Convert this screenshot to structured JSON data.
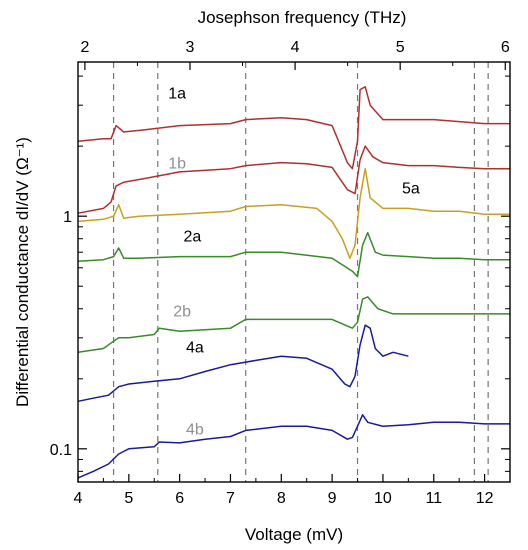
{
  "chart_data": {
    "type": "line",
    "xlabel": "Voltage (mV)",
    "x2label": "Josephson frequency (THz)",
    "ylabel": "Differential conductance dI/dV (Ω⁻¹)",
    "yscale": "log",
    "xlim": [
      4.0,
      12.5
    ],
    "ylim": [
      0.072,
      4.6
    ],
    "x_ticks": [
      "4",
      "5",
      "6",
      "7",
      "8",
      "9",
      "10",
      "11",
      "12"
    ],
    "x2_ticks": [
      "2",
      "3",
      "4",
      "5",
      "6"
    ],
    "y_ticks": [
      "0.1",
      "1"
    ],
    "grid": false,
    "dashed_lines_x": [
      4.7,
      5.57,
      7.3,
      9.5,
      11.8,
      12.07
    ],
    "series": [
      {
        "name": "1a",
        "color": "#b03030",
        "x": [
          4.0,
          4.5,
          4.65,
          4.75,
          4.9,
          5.3,
          6.0,
          7.0,
          7.3,
          8.0,
          8.5,
          9.0,
          9.3,
          9.4,
          9.5,
          9.55,
          9.65,
          9.75,
          10.0,
          10.5,
          11.0,
          11.5,
          12.0,
          12.5
        ],
        "y": [
          2.1,
          2.15,
          2.15,
          2.45,
          2.3,
          2.35,
          2.45,
          2.5,
          2.6,
          2.65,
          2.6,
          2.45,
          1.7,
          1.6,
          2.1,
          3.5,
          3.6,
          3.0,
          2.6,
          2.6,
          2.6,
          2.55,
          2.5,
          2.5
        ]
      },
      {
        "name": "1b",
        "color": "#b03030",
        "x": [
          4.0,
          4.5,
          4.65,
          4.75,
          4.9,
          5.3,
          6.0,
          7.0,
          7.3,
          8.0,
          8.5,
          9.0,
          9.3,
          9.45,
          9.55,
          9.65,
          9.8,
          10.0,
          10.5,
          11.0,
          11.5,
          12.0,
          12.5
        ],
        "y": [
          1.03,
          1.08,
          1.15,
          1.35,
          1.4,
          1.45,
          1.55,
          1.6,
          1.65,
          1.7,
          1.68,
          1.62,
          1.3,
          1.25,
          1.75,
          2.0,
          1.8,
          1.7,
          1.65,
          1.65,
          1.62,
          1.6,
          1.6
        ]
      },
      {
        "name": "5a",
        "color": "#c8a020",
        "x": [
          4.0,
          4.5,
          4.7,
          4.8,
          4.9,
          5.2,
          6.0,
          7.0,
          7.3,
          8.0,
          8.7,
          9.0,
          9.2,
          9.35,
          9.45,
          9.55,
          9.65,
          9.75,
          10.0,
          10.5,
          11.0,
          11.5,
          12.0,
          12.5
        ],
        "y": [
          0.95,
          0.97,
          1.0,
          1.12,
          0.98,
          1.0,
          1.02,
          1.05,
          1.1,
          1.12,
          1.08,
          0.95,
          0.8,
          0.66,
          0.75,
          1.2,
          1.6,
          1.2,
          1.08,
          1.08,
          1.05,
          1.05,
          1.02,
          1.02
        ]
      },
      {
        "name": "2a",
        "color": "#3a8a2a",
        "x": [
          4.0,
          4.5,
          4.7,
          4.8,
          4.9,
          5.2,
          6.0,
          7.0,
          7.3,
          8.0,
          9.0,
          9.4,
          9.5,
          9.6,
          9.7,
          9.85,
          10.0,
          10.5,
          11.0,
          11.5,
          12.0,
          12.5
        ],
        "y": [
          0.64,
          0.65,
          0.67,
          0.73,
          0.66,
          0.66,
          0.67,
          0.67,
          0.7,
          0.7,
          0.66,
          0.58,
          0.55,
          0.75,
          0.85,
          0.7,
          0.68,
          0.67,
          0.66,
          0.66,
          0.65,
          0.65
        ]
      },
      {
        "name": "2b",
        "color": "#3a8a2a",
        "x": [
          4.0,
          4.5,
          4.7,
          4.8,
          5.0,
          5.5,
          5.6,
          6.0,
          7.0,
          7.3,
          8.0,
          9.0,
          9.4,
          9.5,
          9.6,
          9.7,
          9.9,
          10.2,
          10.5,
          11.0,
          11.5,
          12.0,
          12.5
        ],
        "y": [
          0.26,
          0.27,
          0.29,
          0.3,
          0.3,
          0.31,
          0.33,
          0.32,
          0.33,
          0.36,
          0.36,
          0.36,
          0.33,
          0.35,
          0.44,
          0.45,
          0.4,
          0.38,
          0.38,
          0.38,
          0.38,
          0.38,
          0.38
        ]
      },
      {
        "name": "4a",
        "color": "#1a1aa0",
        "x": [
          4.0,
          4.3,
          4.6,
          4.8,
          5.0,
          5.5,
          6.0,
          6.5,
          7.0,
          7.5,
          8.0,
          8.5,
          9.0,
          9.25,
          9.35,
          9.45,
          9.55,
          9.65,
          9.75,
          9.85,
          10.0,
          10.2,
          10.5
        ],
        "y": [
          0.16,
          0.165,
          0.17,
          0.185,
          0.19,
          0.195,
          0.2,
          0.215,
          0.23,
          0.24,
          0.25,
          0.245,
          0.22,
          0.19,
          0.185,
          0.205,
          0.28,
          0.34,
          0.33,
          0.27,
          0.25,
          0.26,
          0.25
        ]
      },
      {
        "name": "4b",
        "color": "#1a1aa0",
        "x": [
          4.0,
          4.3,
          4.6,
          4.8,
          5.0,
          5.5,
          5.6,
          6.0,
          6.5,
          7.0,
          7.3,
          8.0,
          8.5,
          9.0,
          9.3,
          9.4,
          9.5,
          9.6,
          9.7,
          10.0,
          10.5,
          11.0,
          11.5,
          12.0,
          12.5
        ],
        "y": [
          0.075,
          0.08,
          0.086,
          0.095,
          0.1,
          0.102,
          0.107,
          0.106,
          0.11,
          0.113,
          0.12,
          0.125,
          0.125,
          0.12,
          0.11,
          0.112,
          0.125,
          0.14,
          0.13,
          0.125,
          0.127,
          0.13,
          0.13,
          0.128,
          0.128
        ]
      }
    ],
    "labels": [
      {
        "text": "1a",
        "x": 5.95,
        "y": 3.2,
        "color": "#000000"
      },
      {
        "text": "1b",
        "x": 5.95,
        "y": 1.6,
        "color": "#909090"
      },
      {
        "text": "2a",
        "x": 6.25,
        "y": 0.78,
        "color": "#000000"
      },
      {
        "text": "2b",
        "x": 6.05,
        "y": 0.37,
        "color": "#909090"
      },
      {
        "text": "4a",
        "x": 6.3,
        "y": 0.26,
        "color": "#000000"
      },
      {
        "text": "4b",
        "x": 6.3,
        "y": 0.115,
        "color": "#909090"
      },
      {
        "text": "5a",
        "x": 10.55,
        "y": 1.25,
        "color": "#000000"
      }
    ]
  }
}
